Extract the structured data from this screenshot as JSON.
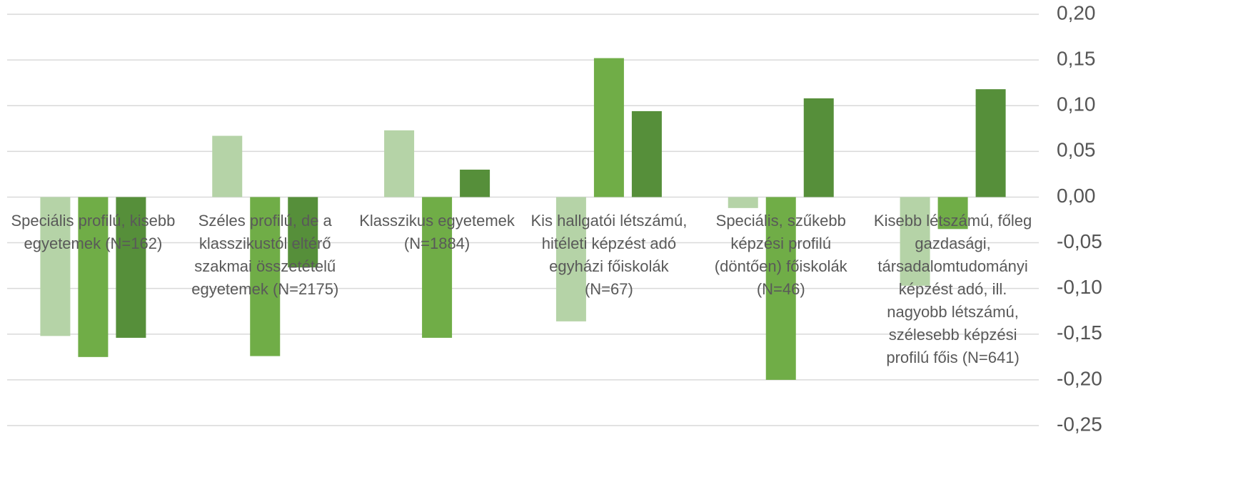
{
  "chart_data": {
    "type": "bar",
    "categories": [
      "Speciális profilú, kisebb egyetemek (N=162)",
      "Széles profilú, de a klasszikustól eltérő szakmai összetételű egyetemek (N=2175)",
      "Klasszikus egyetemek (N=1884)",
      "Kis hallgatói létszámú, hitéleti képzést adó egyházi főiskolák (N=67)",
      "Speciális, szűkebb képzési profilú (döntően) főiskolák (N=46)",
      "Kisebb létszámú, főleg gazdasági, társadalomtudományi képzést adó, ill. nagyobb létszámú, szélesebb képzési profilú főis (N=641)"
    ],
    "series": [
      {
        "color": "#b5d3a7",
        "values": [
          -0.152,
          0.067,
          0.073,
          -0.136,
          -0.012,
          -0.097
        ]
      },
      {
        "color": "#70ad47",
        "values": [
          -0.175,
          -0.174,
          -0.154,
          0.152,
          -0.2,
          -0.035
        ]
      },
      {
        "color": "#568f3a",
        "values": [
          -0.154,
          -0.077,
          0.03,
          0.094,
          0.108,
          0.118
        ]
      }
    ],
    "ylim": [
      -0.25,
      0.2
    ],
    "yticks": [
      {
        "value": 0.2,
        "label": "0,20"
      },
      {
        "value": 0.15,
        "label": "0,15"
      },
      {
        "value": 0.1,
        "label": "0,10"
      },
      {
        "value": 0.05,
        "label": "0,05"
      },
      {
        "value": 0,
        "label": "0,00"
      },
      {
        "value": -0.05,
        "label": "-0,05"
      },
      {
        "value": -0.1,
        "label": "-0,10"
      },
      {
        "value": -0.15,
        "label": "-0,15"
      },
      {
        "value": -0.2,
        "label": "-0,20"
      },
      {
        "value": -0.25,
        "label": "-0,25"
      }
    ],
    "grid": true,
    "y_axis_side": "right"
  }
}
